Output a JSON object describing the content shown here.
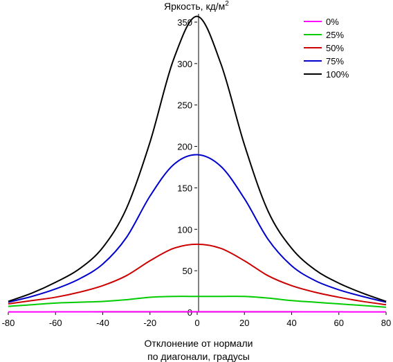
{
  "chart_data": {
    "type": "line",
    "title": "",
    "ylabel_main": "Яркость, кд/м",
    "ylabel_sup": "2",
    "xlabel_line1": "Отклонение от нормали",
    "xlabel_line2": "по диагонали, градусы",
    "xlim": [
      -80,
      80
    ],
    "ylim": [
      0,
      360
    ],
    "xticks": [
      "-80",
      "-60",
      "-40",
      "-20",
      "0",
      "20",
      "40",
      "60",
      "80"
    ],
    "yticks": [
      "0",
      "50",
      "100",
      "150",
      "200",
      "250",
      "300",
      "350"
    ],
    "legend_position": "top-right",
    "x": [
      -80,
      -70,
      -60,
      -50,
      -40,
      -30,
      -20,
      -10,
      0,
      10,
      20,
      30,
      40,
      50,
      60,
      70,
      80
    ],
    "series": [
      {
        "name": "0%",
        "color": "#ff00ff",
        "values": [
          0.3,
          0.3,
          0.4,
          0.4,
          0.5,
          0.5,
          0.5,
          0.5,
          0.5,
          0.5,
          0.5,
          0.5,
          0.5,
          0.4,
          0.4,
          0.3,
          0.3
        ]
      },
      {
        "name": "25%",
        "color": "#00cc00",
        "values": [
          7,
          9,
          11,
          12,
          13,
          15,
          18,
          19,
          19,
          19,
          19,
          17,
          14,
          12,
          10,
          8,
          6
        ]
      },
      {
        "name": "50%",
        "color": "#cc0000",
        "values": [
          10,
          14,
          18,
          24,
          32,
          44,
          62,
          77,
          82,
          77,
          62,
          44,
          32,
          24,
          18,
          13,
          9
        ]
      },
      {
        "name": "75%",
        "color": "#0000cc",
        "values": [
          12,
          19,
          28,
          40,
          58,
          90,
          140,
          178,
          190,
          176,
          137,
          88,
          56,
          38,
          27,
          19,
          12
        ]
      },
      {
        "name": "100%",
        "color": "#000000",
        "values": [
          13,
          23,
          36,
          52,
          78,
          125,
          205,
          305,
          357,
          300,
          202,
          122,
          77,
          51,
          35,
          23,
          13
        ]
      }
    ]
  }
}
